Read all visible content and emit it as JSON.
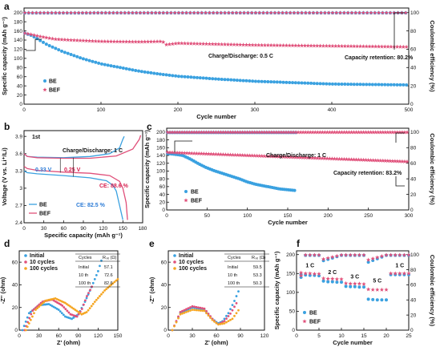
{
  "colors": {
    "BE": "#3aa1e0",
    "BEF": "#e0507a",
    "orange": "#f5a623",
    "blue_ce": "#2b7bd6"
  },
  "chart_data": [
    {
      "panel": "a",
      "type": "scatter",
      "xlabel": "Cycle number",
      "ylabel": "Specific capacity (mAh g⁻¹)",
      "y2label": "Coulombic efficiency (%)",
      "xlim": [
        0,
        500
      ],
      "xticks": [
        0,
        100,
        200,
        300,
        400,
        500
      ],
      "ylim": [
        0,
        210
      ],
      "yticks": [
        0,
        20,
        40,
        60,
        80,
        100,
        120,
        140,
        160,
        180,
        200
      ],
      "y2lim": [
        0,
        105
      ],
      "y2ticks": [
        0,
        20,
        40,
        60,
        80,
        100
      ],
      "annotations": [
        "Charge/Discharge: 0.5 C",
        "Capacity retention: 80.2%"
      ],
      "series": [
        {
          "name": "BE",
          "axis": "capacity",
          "x": [
            1,
            10,
            20,
            30,
            50,
            75,
            100,
            125,
            150,
            175,
            200,
            250,
            300,
            350,
            400,
            450,
            500
          ],
          "y": [
            155,
            150,
            140,
            130,
            115,
            100,
            88,
            80,
            72,
            66,
            61,
            55,
            50,
            47,
            44,
            43,
            42
          ]
        },
        {
          "name": "BEF",
          "axis": "capacity",
          "x": [
            1,
            10,
            20,
            40,
            60,
            100,
            150,
            180,
            185,
            200,
            250,
            300,
            350,
            400,
            450,
            500
          ],
          "y": [
            155,
            152,
            148,
            142,
            140,
            137,
            136,
            137,
            130,
            133,
            131,
            129,
            128,
            127,
            126,
            125
          ]
        },
        {
          "name": "BE",
          "axis": "ce",
          "x": [
            1,
            100,
            200,
            300,
            400,
            500
          ],
          "y": [
            99.5,
            99.6,
            99.6,
            99.6,
            99.6,
            99.6
          ]
        },
        {
          "name": "BEF",
          "axis": "ce",
          "x": [
            1,
            100,
            200,
            300,
            400,
            500
          ],
          "y": [
            99.8,
            99.8,
            99.8,
            99.8,
            99.8,
            99.8
          ]
        }
      ]
    },
    {
      "panel": "b",
      "type": "line",
      "xlabel": "Specific capacity (mAh g⁻¹)",
      "ylabel": "Voltage (V vs. Li⁺/Li)",
      "xlim": [
        0,
        180
      ],
      "xticks": [
        0,
        30,
        60,
        90,
        120,
        150,
        180
      ],
      "ylim": [
        2.4,
        4.0
      ],
      "yticks": [
        2.4,
        2.7,
        3.0,
        3.3,
        3.6,
        3.9
      ],
      "annotations": [
        "1st",
        "Charge/Discharge: 1 C",
        "0.33 V",
        "0.25 V",
        "CE: 88.6 %",
        "CE: 82.5 %"
      ],
      "series": [
        {
          "name": "BE",
          "x": [
            0,
            5,
            20,
            60,
            100,
            130,
            145,
            150,
            152
          ],
          "y": [
            3.6,
            3.55,
            3.54,
            3.53,
            3.55,
            3.6,
            3.7,
            3.85,
            3.9
          ]
        },
        {
          "name": "BE",
          "x": [
            0,
            5,
            20,
            60,
            100,
            125,
            135,
            140,
            145,
            150
          ],
          "y": [
            3.3,
            3.27,
            3.25,
            3.22,
            3.18,
            3.13,
            3.05,
            2.95,
            2.7,
            2.45
          ]
        },
        {
          "name": "BEF",
          "x": [
            0,
            5,
            20,
            60,
            100,
            140,
            165,
            175,
            177
          ],
          "y": [
            3.6,
            3.55,
            3.53,
            3.52,
            3.52,
            3.56,
            3.68,
            3.85,
            3.92
          ]
        },
        {
          "name": "BEF",
          "x": [
            0,
            5,
            20,
            60,
            100,
            130,
            145,
            150,
            155,
            157
          ],
          "y": [
            3.38,
            3.34,
            3.31,
            3.28,
            3.26,
            3.22,
            3.12,
            3.0,
            2.75,
            2.45
          ]
        }
      ]
    },
    {
      "panel": "c",
      "type": "scatter",
      "xlabel": "Cycle number",
      "ylabel": "Specific capacity (mAh g⁻¹)",
      "y2label": "Coulombic efficiency (%)",
      "xlim": [
        0,
        300
      ],
      "xticks": [
        0,
        50,
        100,
        150,
        200,
        250,
        300
      ],
      "ylim": [
        0,
        210
      ],
      "yticks": [
        0,
        20,
        40,
        60,
        80,
        100,
        120,
        140,
        160,
        180,
        200
      ],
      "y2lim": [
        0,
        105
      ],
      "y2ticks": [
        0,
        20,
        40,
        60,
        80,
        100
      ],
      "annotations": [
        "Charge/Discharge: 1 C",
        "Capacity retention: 83.2%"
      ],
      "series": [
        {
          "name": "BE",
          "axis": "capacity",
          "x": [
            1,
            10,
            20,
            30,
            40,
            50,
            60,
            75,
            90,
            100,
            110,
            125,
            140,
            150,
            160
          ],
          "y": [
            145,
            143,
            140,
            130,
            118,
            108,
            100,
            90,
            80,
            72,
            66,
            60,
            54,
            52,
            50
          ]
        },
        {
          "name": "BEF",
          "axis": "capacity",
          "x": [
            1,
            25,
            50,
            75,
            100,
            150,
            200,
            250,
            300
          ],
          "y": [
            148,
            146,
            144,
            142,
            140,
            136,
            132,
            128,
            124
          ]
        },
        {
          "name": "BE",
          "axis": "ce",
          "x": [
            1,
            50,
            100,
            160
          ],
          "y": [
            99.5,
            99.5,
            99.5,
            99.5
          ]
        },
        {
          "name": "BEF",
          "axis": "ce",
          "x": [
            1,
            100,
            200,
            300
          ],
          "y": [
            99.8,
            99.8,
            99.8,
            99.8
          ]
        }
      ]
    },
    {
      "panel": "d",
      "type": "scatter",
      "xlabel": "Z' (ohm)",
      "ylabel": "-Z'' (ohm)",
      "xlim": [
        0,
        150
      ],
      "xticks": [
        0,
        30,
        60,
        90,
        120,
        150
      ],
      "ylim": [
        0,
        70
      ],
      "yticks": [
        0,
        20,
        40,
        60
      ],
      "legend": [
        "Initial",
        "10 cycles",
        "100 cycles"
      ],
      "table": {
        "headers": [
          "Cycles",
          "Rₛₑ (Ω)"
        ],
        "rows": [
          [
            "Initial",
            "57.1"
          ],
          [
            "10 th",
            "72.6"
          ],
          [
            "100 th",
            "82.6"
          ]
        ]
      },
      "series": [
        {
          "name": "Initial",
          "x": [
            5,
            15,
            30,
            45,
            60,
            70,
            80,
            90,
            100,
            110,
            120,
            127
          ],
          "y": [
            0,
            15,
            22,
            23,
            18,
            12,
            10,
            14,
            25,
            38,
            52,
            65
          ]
        },
        {
          "name": "10 cycles",
          "x": [
            8,
            20,
            35,
            50,
            65,
            78,
            88,
            95,
            103,
            112
          ],
          "y": [
            0,
            17,
            25,
            27,
            22,
            14,
            12,
            18,
            30,
            40
          ]
        },
        {
          "name": "100 cycles",
          "x": [
            10,
            25,
            40,
            55,
            70,
            85,
            95,
            103,
            115,
            130,
            150
          ],
          "y": [
            0,
            18,
            26,
            28,
            24,
            18,
            14,
            16,
            25,
            35,
            45
          ]
        }
      ]
    },
    {
      "panel": "e",
      "type": "scatter",
      "xlabel": "Z' (ohm)",
      "ylabel": "-Z'' (ohm)",
      "xlim": [
        0,
        120
      ],
      "xticks": [
        0,
        30,
        60,
        90,
        120
      ],
      "ylim": [
        0,
        70
      ],
      "yticks": [
        0,
        20,
        40,
        60
      ],
      "legend": [
        "Initial",
        "10 cycles",
        "100 cycles"
      ],
      "table": {
        "headers": [
          "Cycles",
          "Rₛₑ (Ω)"
        ],
        "rows": [
          [
            "Initial",
            "59.5"
          ],
          [
            "10 th",
            "53.3"
          ],
          [
            "100 th",
            "50.3"
          ]
        ]
      },
      "series": [
        {
          "name": "Initial",
          "x": [
            5,
            15,
            30,
            45,
            55,
            62,
            68,
            75,
            82,
            88
          ],
          "y": [
            0,
            15,
            20,
            18,
            10,
            6,
            8,
            15,
            25,
            35
          ]
        },
        {
          "name": "10 cycles",
          "x": [
            5,
            15,
            30,
            45,
            55,
            62,
            70,
            78,
            86
          ],
          "y": [
            0,
            16,
            21,
            19,
            10,
            5,
            8,
            15,
            25
          ]
        },
        {
          "name": "100 cycles",
          "x": [
            5,
            15,
            30,
            45,
            55,
            62,
            70,
            80,
            88
          ],
          "y": [
            0,
            14,
            18,
            17,
            9,
            5,
            6,
            10,
            18
          ]
        }
      ]
    },
    {
      "panel": "f",
      "type": "scatter",
      "xlabel": "Cycle number",
      "ylabel": "Specific capacity (mAh g⁻¹)",
      "y2label": "Coulombic efficiency (%)",
      "xlim": [
        0,
        25
      ],
      "xticks": [
        0,
        5,
        10,
        15,
        20,
        25
      ],
      "ylim": [
        0,
        210
      ],
      "yticks": [
        0,
        50,
        100,
        150,
        200
      ],
      "y2lim": [
        0,
        105
      ],
      "y2ticks": [
        0,
        20,
        40,
        60,
        80,
        100
      ],
      "rate_labels": [
        "1 C",
        "2 C",
        "3 C",
        "5 C",
        "1 C"
      ],
      "series": [
        {
          "name": "BE",
          "axis": "capacity",
          "x": [
            1,
            2,
            3,
            4,
            5,
            6,
            7,
            8,
            9,
            10,
            11,
            12,
            13,
            14,
            15,
            16,
            17,
            18,
            19,
            20,
            21,
            22,
            23,
            24,
            25
          ],
          "y": [
            148,
            146,
            145,
            145,
            144,
            130,
            128,
            128,
            127,
            127,
            116,
            115,
            115,
            114,
            114,
            82,
            81,
            80,
            80,
            80,
            147,
            147,
            147,
            147,
            147
          ]
        },
        {
          "name": "BEF",
          "axis": "capacity",
          "x": [
            1,
            2,
            3,
            4,
            5,
            6,
            7,
            8,
            9,
            10,
            11,
            12,
            13,
            14,
            15,
            16,
            17,
            18,
            19,
            20,
            21,
            22,
            23,
            24,
            25
          ],
          "y": [
            152,
            150,
            150,
            149,
            149,
            137,
            136,
            136,
            135,
            135,
            124,
            123,
            123,
            123,
            122,
            108,
            107,
            107,
            107,
            107,
            150,
            150,
            150,
            150,
            150
          ]
        },
        {
          "name": "BE",
          "axis": "ce",
          "x": [
            1,
            2,
            5,
            6,
            10,
            11,
            15,
            16,
            20,
            21,
            25
          ],
          "y": [
            70,
            99,
            99,
            92,
            99,
            99,
            99,
            90,
            99,
            99,
            99
          ]
        },
        {
          "name": "BEF",
          "axis": "ce",
          "x": [
            1,
            2,
            5,
            6,
            10,
            11,
            15,
            16,
            20,
            21,
            25
          ],
          "y": [
            72,
            99.5,
            99.5,
            94,
            99.5,
            99.5,
            99.5,
            93,
            99.5,
            99.5,
            99.5
          ]
        }
      ]
    }
  ]
}
